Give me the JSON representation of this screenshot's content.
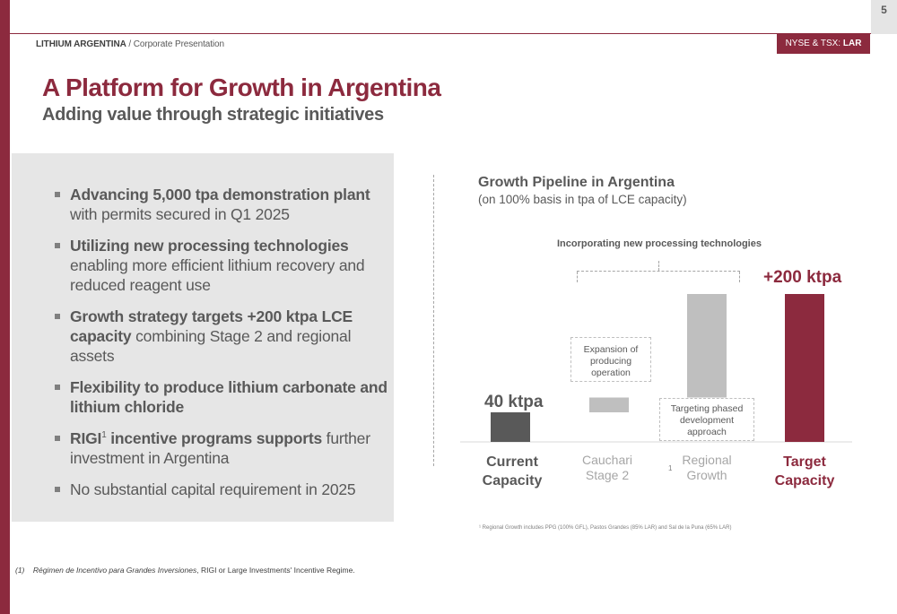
{
  "header": {
    "page_number": "5",
    "brand_company": "LITHIUM ARGENTINA",
    "brand_separator": " / ",
    "brand_doc": "Corporate Presentation",
    "ticker_prefix": "NYSE & TSX: ",
    "ticker_symbol": "LAR"
  },
  "title": "A Platform for Growth in Argentina",
  "subtitle": "Adding value through strategic initiatives",
  "bullets": [
    {
      "bold": "Advancing 5,000 tpa demonstration plant",
      "rest": " with permits secured in Q1 2025"
    },
    {
      "bold": "Utilizing new processing technologies",
      "rest": " enabling more efficient lithium recovery and reduced reagent use"
    },
    {
      "bold": "Growth strategy targets +200 ktpa LCE capacity",
      "rest": " combining Stage 2 and regional assets"
    },
    {
      "bold": "Flexibility to produce lithium carbonate and lithium chloride",
      "rest": ""
    },
    {
      "bold": "RIGI",
      "sup": "1",
      "bold2": " incentive programs supports",
      "rest": " further investment in Argentina"
    },
    {
      "bold": "",
      "rest": "No substantial capital requirement in 2025"
    }
  ],
  "chart_data": {
    "type": "bar",
    "subtype": "waterfall",
    "title": "Growth Pipeline in Argentina",
    "subtitle": "(on 100% basis in tpa of LCE capacity)",
    "annotation_top": "Incorporating new processing technologies",
    "categories": [
      "Current Capacity",
      "Cauchari Stage 2",
      "Regional Growth",
      "Target Capacity"
    ],
    "bars": [
      {
        "category": "Current Capacity",
        "base": 0,
        "value": 40,
        "label": "40 ktpa",
        "color": "#595959"
      },
      {
        "category": "Cauchari Stage 2",
        "base": 40,
        "value": 20,
        "label": "",
        "color": "#bfbfbf"
      },
      {
        "category": "Regional Growth",
        "base": 60,
        "value": 140,
        "label": "",
        "color": "#bfbfbf"
      },
      {
        "category": "Target Capacity",
        "base": 0,
        "value": 200,
        "label": "+200 ktpa",
        "color": "#8c2a3e"
      }
    ],
    "ylim": [
      0,
      200
    ],
    "unit": "ktpa",
    "callouts": {
      "expansion": [
        "Expansion of",
        "producing",
        "operation"
      ],
      "phased": [
        "Targeting phased",
        "development",
        "approach"
      ]
    },
    "footnote_marker": "1",
    "footnote": "¹ Regional Growth includes PPG (100% GFL), Pastos Grandes (85% LAR) and Sal de la Puna (65% LAR)"
  },
  "category_labels": {
    "c1": [
      "Current",
      "Capacity"
    ],
    "c2": [
      "Cauchari",
      "Stage 2"
    ],
    "c3": [
      "Regional",
      "Growth"
    ],
    "c4": [
      "Target",
      "Capacity"
    ]
  },
  "footnote": {
    "num": "(1)",
    "italic": "Régimen de Incentivo para Grandes Inversiones",
    "rest_a": ", RIGI or ",
    "rest_b": "Large Investments' Incentive Regime."
  },
  "colors": {
    "accent": "#8c2a3e",
    "dark_bar": "#595959",
    "light_bar": "#bfbfbf",
    "panel": "#e6e6e6"
  }
}
